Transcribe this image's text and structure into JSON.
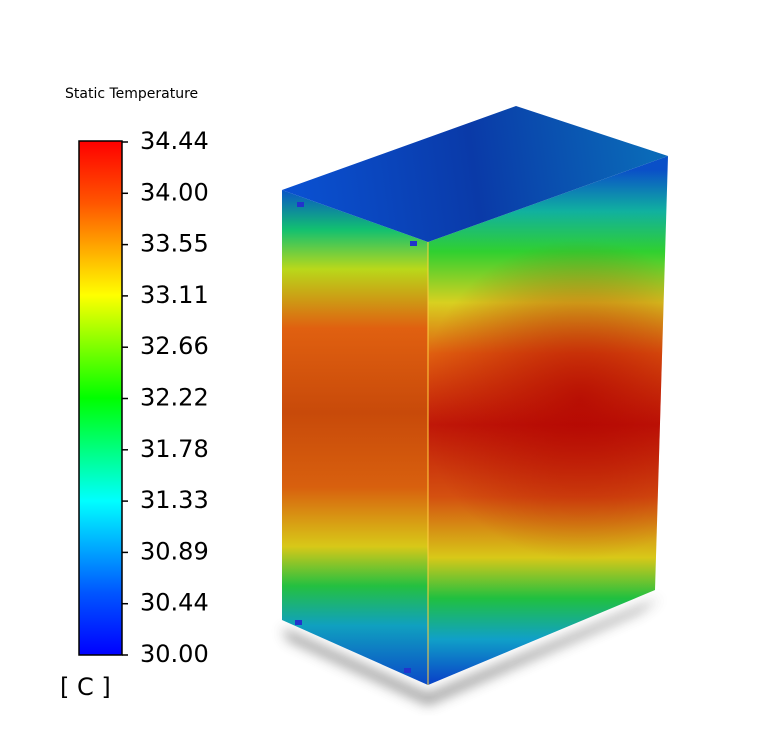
{
  "legend": {
    "title": "Static Temperature",
    "ticks": [
      "34.44",
      "34.00",
      "33.55",
      "33.11",
      "32.66",
      "32.22",
      "31.78",
      "31.33",
      "30.89",
      "30.44",
      "30.00"
    ],
    "unit": "[ C ]"
  }
}
